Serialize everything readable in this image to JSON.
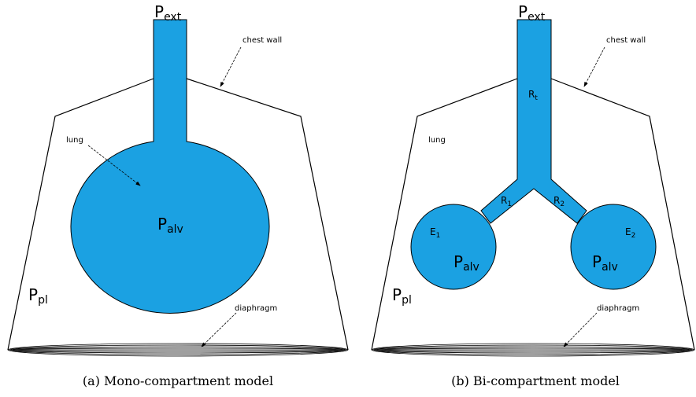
{
  "panels": [
    {
      "labels": {
        "p_ext": {
          "text": "P",
          "sub": "ext"
        },
        "chest_wall": "chest wall",
        "lung": "lung",
        "p_alv": {
          "text": "P",
          "sub": "alv"
        },
        "p_pl": {
          "text": "P",
          "sub": "pl"
        },
        "diaphragm": "diaphragm"
      },
      "caption": "(a) Mono-compartment model"
    },
    {
      "labels": {
        "p_ext": {
          "text": "P",
          "sub": "ext"
        },
        "chest_wall": "chest wall",
        "r_t": {
          "text": "R",
          "sub": "t"
        },
        "lung": "lung",
        "r_1": {
          "text": "R",
          "sub": "1"
        },
        "r_2": {
          "text": "R",
          "sub": "2"
        },
        "e_1": {
          "text": "E",
          "sub": "1"
        },
        "e_2": {
          "text": "E",
          "sub": "2"
        },
        "p_alv_1": {
          "text": "P",
          "sub": "alv"
        },
        "p_alv_2": {
          "text": "P",
          "sub": "alv"
        },
        "p_pl": {
          "text": "P",
          "sub": "pl"
        },
        "diaphragm": "diaphragm"
      },
      "caption": "(b) Bi-compartment model"
    }
  ]
}
